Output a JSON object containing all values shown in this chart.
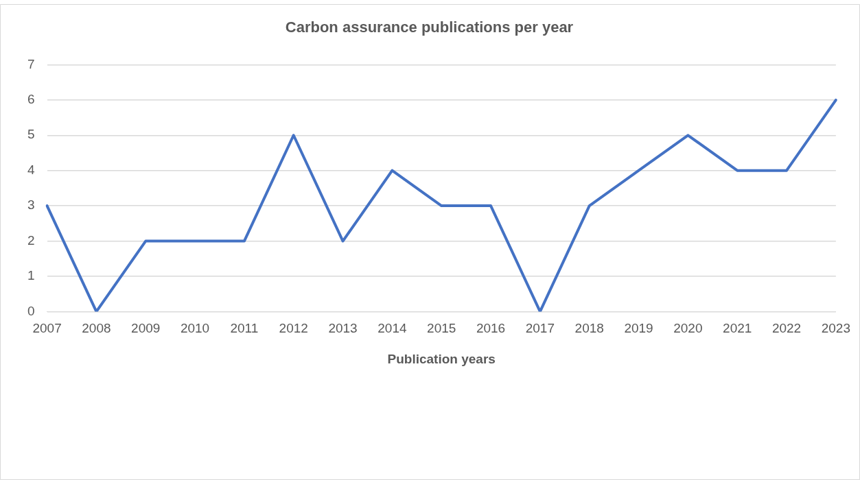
{
  "chart_data": {
    "type": "line",
    "title": "Carbon assurance publications per year",
    "xlabel": "Publication years",
    "categories": [
      "2007",
      "2008",
      "2009",
      "2010",
      "2011",
      "2012",
      "2013",
      "2014",
      "2015",
      "2016",
      "2017",
      "2018",
      "2019",
      "2020",
      "2021",
      "2022",
      "2023"
    ],
    "values": [
      3,
      0,
      2,
      2,
      2,
      5,
      2,
      4,
      3,
      3,
      0,
      3,
      4,
      5,
      4,
      4,
      6
    ],
    "color": "#4472c4",
    "ylim": [
      0,
      7
    ],
    "yticks": [
      0,
      1,
      2,
      3,
      4,
      5,
      6,
      7
    ],
    "grid": "y",
    "marker": "none",
    "line_style": "solid"
  }
}
